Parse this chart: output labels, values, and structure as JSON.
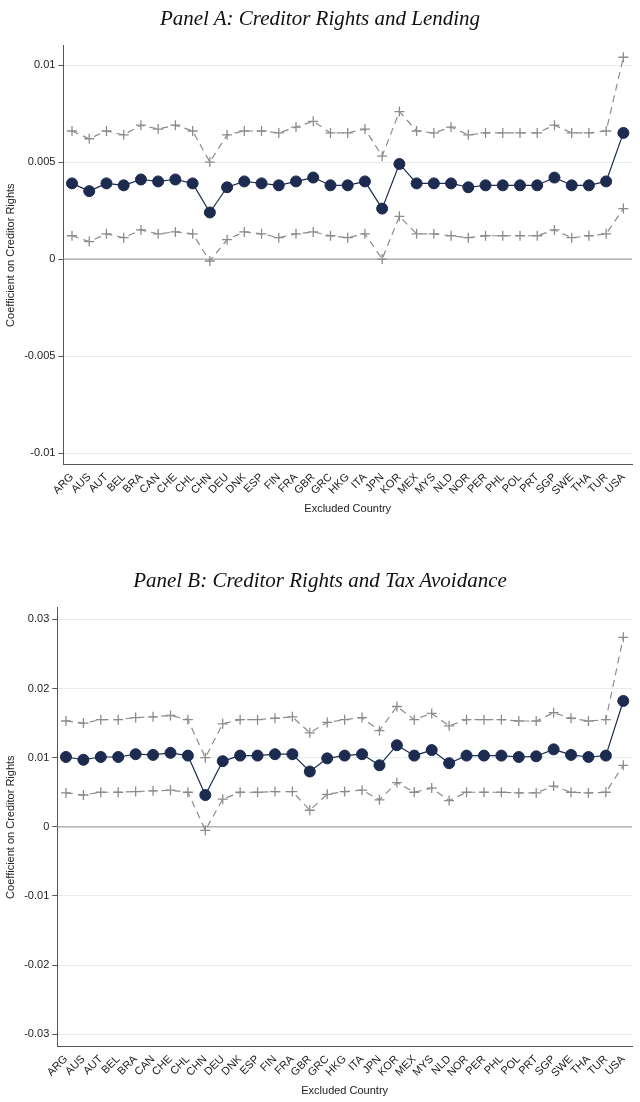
{
  "chart_data": [
    {
      "type": "line",
      "title": "Panel A: Creditor Rights and Lending",
      "xlabel": "Excluded Country",
      "ylabel": "Coefficient on Creditor Rights",
      "categories": [
        "ARG",
        "AUS",
        "AUT",
        "BEL",
        "BRA",
        "CAN",
        "CHE",
        "CHL",
        "CHN",
        "DEU",
        "DNK",
        "ESP",
        "FIN",
        "FRA",
        "GBR",
        "GRC",
        "HKG",
        "ITA",
        "JPN",
        "KOR",
        "MEX",
        "MYS",
        "NLD",
        "NOR",
        "PER",
        "PHL",
        "POL",
        "PRT",
        "SGP",
        "SWE",
        "THA",
        "TUR",
        "USA"
      ],
      "series": [
        {
          "color": "#8c8c8c",
          "marker": "cross",
          "line_style": "dashed",
          "values": [
            0.0066,
            0.0062,
            0.0066,
            0.0064,
            0.0069,
            0.0067,
            0.0069,
            0.0066,
            0.005,
            0.0064,
            0.0066,
            0.0066,
            0.0065,
            0.0068,
            0.0071,
            0.0065,
            0.0065,
            0.0067,
            0.0053,
            0.0076,
            0.0066,
            0.0065,
            0.0068,
            0.0064,
            0.0065,
            0.0065,
            0.0065,
            0.0065,
            0.0069,
            0.0065,
            0.0065,
            0.0066,
            0.0104
          ]
        },
        {
          "color": "#8c8c8c",
          "marker": "cross",
          "line_style": "dashed",
          "values": [
            0.0012,
            0.0009,
            0.0013,
            0.0011,
            0.0015,
            0.0013,
            0.0014,
            0.0013,
            -0.0001,
            0.001,
            0.0014,
            0.0013,
            0.0011,
            0.0013,
            0.0014,
            0.0012,
            0.0011,
            0.0013,
            0.0,
            0.0022,
            0.0013,
            0.0013,
            0.0012,
            0.0011,
            0.0012,
            0.0012,
            0.0012,
            0.0012,
            0.0015,
            0.0011,
            0.0012,
            0.0013,
            0.0026
          ]
        },
        {
          "color": "#1c2b4f",
          "marker": "circle",
          "line_style": "solid",
          "values": [
            0.0039,
            0.0035,
            0.0039,
            0.0038,
            0.0041,
            0.004,
            0.0041,
            0.0039,
            0.0024,
            0.0037,
            0.004,
            0.0039,
            0.0038,
            0.004,
            0.0042,
            0.0038,
            0.0038,
            0.004,
            0.0026,
            0.0049,
            0.0039,
            0.0039,
            0.0039,
            0.0037,
            0.0038,
            0.0038,
            0.0038,
            0.0038,
            0.0042,
            0.0038,
            0.0038,
            0.004,
            0.0065
          ]
        }
      ],
      "ylim": [
        -0.0106,
        0.011
      ],
      "yticks": [
        -0.01,
        -0.005,
        0,
        0.005,
        0.01
      ],
      "grid": "y",
      "ref_lines": [
        {
          "axis": "y",
          "value": 0,
          "color": "#a6a6a6"
        }
      ]
    },
    {
      "type": "line",
      "title": "Panel B: Creditor Rights and Tax Avoidance",
      "xlabel": "Excluded Country",
      "ylabel": "Coefficient on Creditor Rights",
      "categories": [
        "ARG",
        "AUS",
        "AUT",
        "BEL",
        "BRA",
        "CAN",
        "CHE",
        "CHL",
        "CHN",
        "DEU",
        "DNK",
        "ESP",
        "FIN",
        "FRA",
        "GBR",
        "GRC",
        "HKG",
        "ITA",
        "JPN",
        "KOR",
        "MEX",
        "MYS",
        "NLD",
        "NOR",
        "PER",
        "PHL",
        "POL",
        "PRT",
        "SGP",
        "SWE",
        "THA",
        "TUR",
        "USA"
      ],
      "series": [
        {
          "color": "#8c8c8c",
          "marker": "cross",
          "line_style": "dashed",
          "values": [
            0.0153,
            0.015,
            0.0155,
            0.0155,
            0.0158,
            0.0159,
            0.0161,
            0.0155,
            0.01,
            0.0149,
            0.0155,
            0.0155,
            0.0157,
            0.0159,
            0.0136,
            0.0151,
            0.0155,
            0.0158,
            0.0139,
            0.0174,
            0.0155,
            0.0164,
            0.0146,
            0.0155,
            0.0155,
            0.0155,
            0.0153,
            0.0153,
            0.0165,
            0.0157,
            0.0153,
            0.0155,
            0.0274
          ]
        },
        {
          "color": "#8c8c8c",
          "marker": "cross",
          "line_style": "dashed",
          "values": [
            0.0049,
            0.0046,
            0.005,
            0.005,
            0.0051,
            0.0052,
            0.0053,
            0.005,
            -0.0005,
            0.004,
            0.005,
            0.005,
            0.0051,
            0.0051,
            0.0024,
            0.0047,
            0.0051,
            0.0053,
            0.0039,
            0.0064,
            0.005,
            0.0056,
            0.0038,
            0.005,
            0.005,
            0.005,
            0.0049,
            0.0049,
            0.0059,
            0.005,
            0.0049,
            0.005,
            0.0089
          ]
        },
        {
          "color": "#1c2b4f",
          "marker": "circle",
          "line_style": "solid",
          "values": [
            0.0101,
            0.0097,
            0.0101,
            0.0101,
            0.0105,
            0.0104,
            0.0107,
            0.0103,
            0.0046,
            0.0095,
            0.0103,
            0.0103,
            0.0105,
            0.0105,
            0.008,
            0.0099,
            0.0103,
            0.0105,
            0.0089,
            0.0118,
            0.0103,
            0.0111,
            0.0092,
            0.0103,
            0.0103,
            0.0103,
            0.0101,
            0.0102,
            0.0112,
            0.0104,
            0.0101,
            0.0103,
            0.0182
          ]
        }
      ],
      "ylim": [
        -0.0318,
        0.0317
      ],
      "yticks": [
        -0.03,
        -0.02,
        -0.01,
        0,
        0.01,
        0.02,
        0.03
      ],
      "grid": "y",
      "ref_lines": [
        {
          "axis": "y",
          "value": 0,
          "color": "#a6a6a6"
        }
      ]
    }
  ]
}
